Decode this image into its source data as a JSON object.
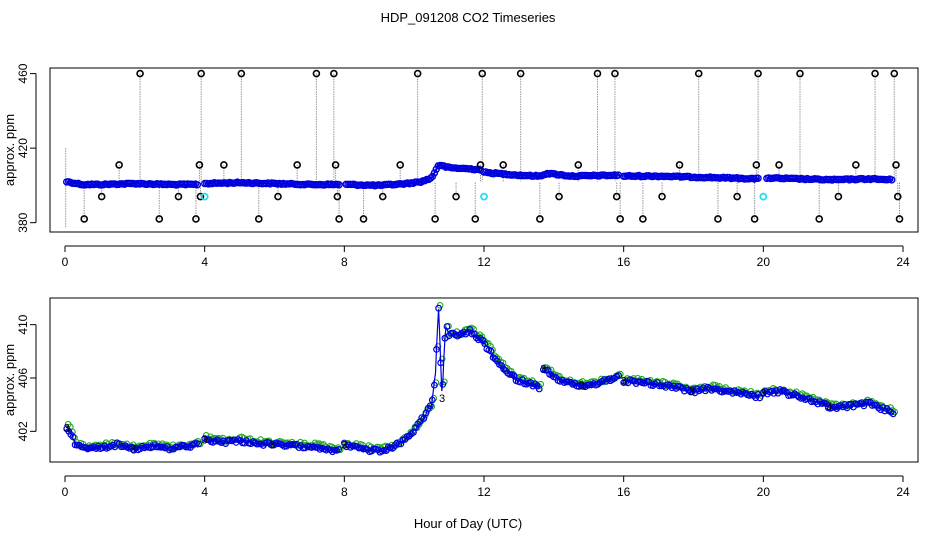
{
  "figure": {
    "title": "HDP_091208  CO2 Timeseries",
    "xlabel": "Hour of Day (UTC)"
  },
  "chart_data": [
    {
      "type": "scatter",
      "name": "top-panel",
      "xlim": [
        0,
        24
      ],
      "ylim": [
        375,
        463
      ],
      "xticks": [
        0,
        4,
        8,
        12,
        16,
        20,
        24
      ],
      "yticks": [
        380,
        420,
        460
      ],
      "ylabel": "approx. ppm",
      "colors": {
        "main": "#0000dd",
        "flag": "#000000",
        "alt": "#22ddee",
        "spike": "#999999"
      },
      "segments": [
        {
          "x": [
            0.05,
            0.5,
            1.0,
            2.0,
            3.0,
            3.8
          ],
          "y": [
            402,
            400.5,
            400.5,
            401,
            400.5,
            400.5
          ]
        },
        {
          "x": [
            4.0,
            5.0,
            6.0,
            7.0,
            7.9
          ],
          "y": [
            401,
            401.5,
            401,
            400.5,
            400.5
          ]
        },
        {
          "x": [
            8.05,
            9.0,
            9.8,
            10.2,
            10.5,
            10.7,
            11.0,
            11.5,
            11.9
          ],
          "y": [
            400.5,
            400,
            401,
            402,
            404,
            411,
            409.5,
            409,
            408.5
          ]
        },
        {
          "x": [
            12.0,
            13.0,
            13.6,
            13.8,
            14.5,
            15.9
          ],
          "y": [
            407,
            405.5,
            405,
            406.5,
            405,
            405.5
          ]
        },
        {
          "x": [
            16.0,
            17.0,
            18.0,
            19.0,
            19.9
          ],
          "y": [
            405,
            405,
            404.5,
            404,
            403.5
          ]
        },
        {
          "x": [
            20.1,
            21.0,
            22.0,
            23.0,
            23.7
          ],
          "y": [
            404,
            403.5,
            403,
            403.5,
            403
          ]
        }
      ],
      "flag_points": [
        [
          0.55,
          382
        ],
        [
          1.05,
          394
        ],
        [
          1.55,
          411
        ],
        [
          2.15,
          460
        ],
        [
          2.7,
          382
        ],
        [
          3.25,
          394
        ],
        [
          3.75,
          382
        ],
        [
          3.85,
          411
        ],
        [
          3.88,
          394
        ],
        [
          3.9,
          460
        ],
        [
          4.55,
          411
        ],
        [
          5.05,
          460
        ],
        [
          5.55,
          382
        ],
        [
          6.1,
          394
        ],
        [
          6.65,
          411
        ],
        [
          7.2,
          460
        ],
        [
          7.7,
          460
        ],
        [
          7.75,
          411
        ],
        [
          7.8,
          394
        ],
        [
          7.85,
          382
        ],
        [
          8.55,
          382
        ],
        [
          9.1,
          394
        ],
        [
          9.6,
          411
        ],
        [
          10.1,
          460
        ],
        [
          10.6,
          382
        ],
        [
          11.2,
          394
        ],
        [
          11.75,
          382
        ],
        [
          11.9,
          411
        ],
        [
          11.95,
          460
        ],
        [
          12.55,
          411
        ],
        [
          13.05,
          460
        ],
        [
          13.6,
          382
        ],
        [
          14.15,
          394
        ],
        [
          14.7,
          411
        ],
        [
          15.25,
          460
        ],
        [
          15.75,
          460
        ],
        [
          15.8,
          394
        ],
        [
          15.9,
          382
        ],
        [
          16.55,
          382
        ],
        [
          17.1,
          394
        ],
        [
          17.6,
          411
        ],
        [
          18.15,
          460
        ],
        [
          18.7,
          382
        ],
        [
          19.25,
          394
        ],
        [
          19.75,
          382
        ],
        [
          19.8,
          411
        ],
        [
          19.85,
          460
        ],
        [
          20.45,
          411
        ],
        [
          21.05,
          460
        ],
        [
          21.6,
          382
        ],
        [
          22.15,
          394
        ],
        [
          22.65,
          411
        ],
        [
          23.2,
          460
        ],
        [
          23.75,
          460
        ],
        [
          23.8,
          411
        ],
        [
          23.85,
          394
        ],
        [
          23.9,
          382
        ]
      ],
      "alt_points": [
        [
          4.0,
          394
        ],
        [
          12.0,
          394
        ],
        [
          20.0,
          394
        ]
      ]
    },
    {
      "type": "line",
      "name": "bottom-panel",
      "xlim": [
        0,
        24
      ],
      "ylim": [
        399.7,
        412
      ],
      "xticks": [
        0,
        4,
        8,
        12,
        16,
        20,
        24
      ],
      "yticks": [
        402,
        406,
        410
      ],
      "ylabel": "approx. ppm",
      "marker": "3",
      "colors": {
        "series_a": "#0000dd",
        "series_b": "#22aa22"
      },
      "segments": [
        {
          "x": [
            0.05,
            0.15,
            0.25,
            0.35,
            0.6,
            1.0,
            1.5,
            2.0,
            2.5,
            3.0,
            3.5,
            3.85
          ],
          "y": [
            402.3,
            402.0,
            401.3,
            400.9,
            400.7,
            400.8,
            401.0,
            400.7,
            400.9,
            400.7,
            400.9,
            401.0
          ]
        },
        {
          "x": [
            4.0,
            4.5,
            5.0,
            5.5,
            6.0,
            6.5,
            7.0,
            7.5,
            7.85
          ],
          "y": [
            401.4,
            401.2,
            401.3,
            401.1,
            401.0,
            400.9,
            400.9,
            400.7,
            400.5
          ]
        },
        {
          "x": [
            8.0,
            8.5,
            9.0,
            9.4,
            9.8,
            10.1,
            10.3,
            10.5,
            10.6,
            10.7,
            10.8,
            10.9,
            11.0,
            11.3,
            11.6,
            12.0,
            12.3,
            12.6,
            13.0,
            13.3,
            13.6
          ],
          "y": [
            401.0,
            400.7,
            400.5,
            400.8,
            401.5,
            402.4,
            403.2,
            404.0,
            406.0,
            411.3,
            404.5,
            410.0,
            409.3,
            409.2,
            409.5,
            408.6,
            407.5,
            406.5,
            405.8,
            405.6,
            405.3
          ]
        },
        {
          "x": [
            13.7,
            13.9,
            14.2,
            14.6,
            15.0,
            15.5,
            15.9
          ],
          "y": [
            406.7,
            406.3,
            405.8,
            405.5,
            405.4,
            405.8,
            406.2
          ]
        },
        {
          "x": [
            16.0,
            16.5,
            17.0,
            17.5,
            18.0,
            18.5,
            19.0,
            19.5,
            19.9
          ],
          "y": [
            405.8,
            405.7,
            405.5,
            405.3,
            405.0,
            405.2,
            405.0,
            404.8,
            404.6
          ]
        },
        {
          "x": [
            20.0,
            20.5,
            21.0,
            21.5,
            22.0,
            22.5,
            23.0,
            23.5,
            23.75
          ],
          "y": [
            404.9,
            405.0,
            404.6,
            404.2,
            403.8,
            403.9,
            404.1,
            403.6,
            403.4
          ]
        }
      ]
    }
  ]
}
